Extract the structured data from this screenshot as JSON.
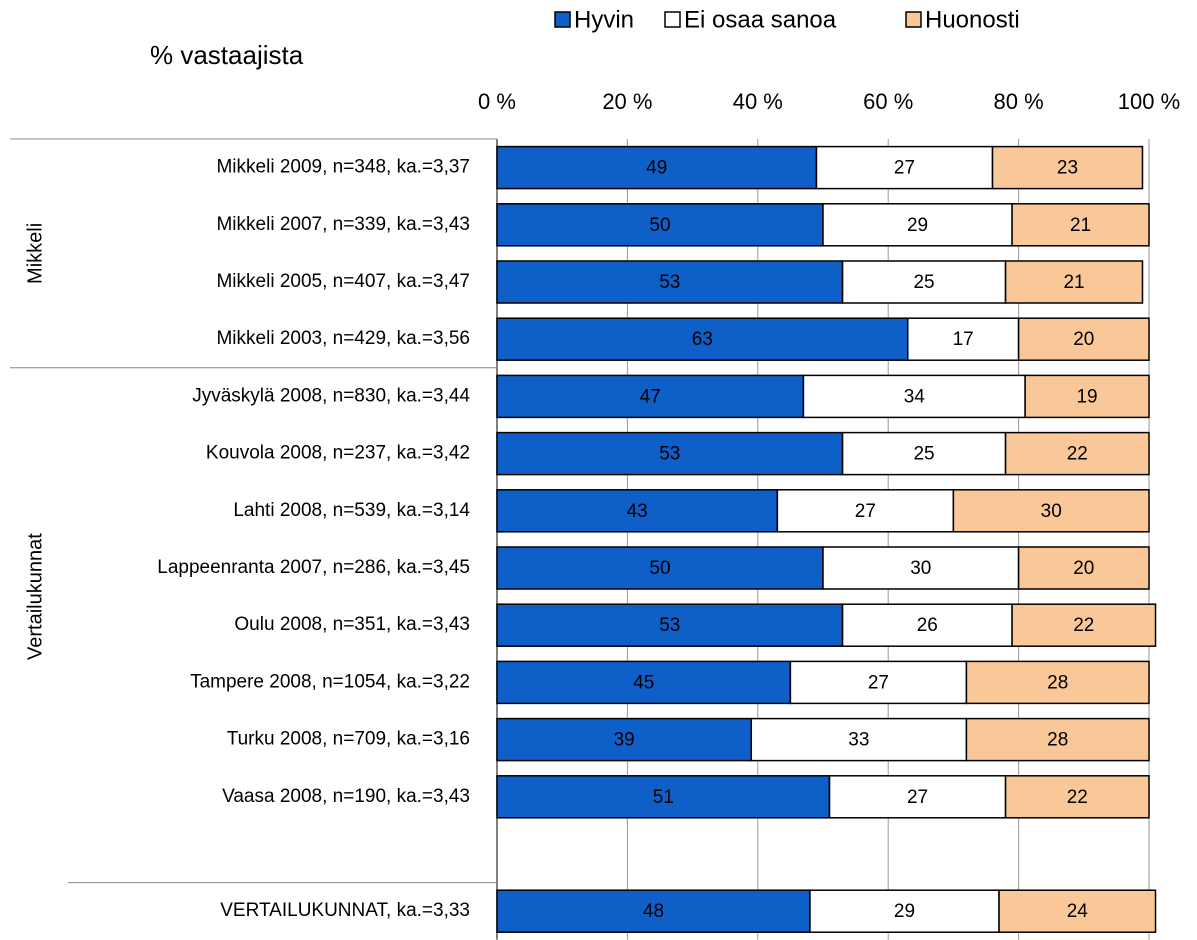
{
  "chart_data": {
    "type": "stacked-bar-horizontal",
    "axis_title": "% vastaajista",
    "categories": [
      "Mikkeli 2009, n=348, ka.=3,37",
      "Mikkeli 2007, n=339, ka.=3,43",
      "Mikkeli 2005, n=407, ka.=3,47",
      "Mikkeli 2003, n=429, ka.=3,56",
      "Jyväskylä 2008, n=830, ka.=3,44",
      "Kouvola 2008, n=237, ka.=3,42",
      "Lahti 2008, n=539, ka.=3,14",
      "Lappeenranta 2007, n=286, ka.=3,45",
      "Oulu 2008, n=351, ka.=3,43",
      "Tampere 2008, n=1054, ka.=3,22",
      "Turku 2008, n=709, ka.=3,16",
      "Vaasa 2008, n=190, ka.=3,43",
      null,
      "VERTAILUKUNNAT, ka.=3,33"
    ],
    "groups": [
      "Mikkeli",
      "Vertailukunnat"
    ],
    "series": [
      {
        "name": "Hyvin",
        "color": "#0f5fc8",
        "label_color": "#ffffff",
        "values": [
          49,
          50,
          53,
          63,
          47,
          53,
          43,
          50,
          53,
          45,
          39,
          51,
          null,
          48
        ]
      },
      {
        "name": "Ei osaa sanoa",
        "color": "#ffffff",
        "label_color": "#000000",
        "values": [
          27,
          29,
          25,
          17,
          34,
          25,
          27,
          30,
          26,
          27,
          33,
          27,
          null,
          29
        ]
      },
      {
        "name": "Huonosti",
        "color": "#fac898",
        "label_color": "#000000",
        "values": [
          23,
          21,
          21,
          20,
          19,
          22,
          30,
          20,
          22,
          28,
          28,
          22,
          null,
          24
        ]
      }
    ],
    "xlim": [
      0,
      100
    ],
    "xticks": [
      {
        "value": 0,
        "label": "0 %"
      },
      {
        "value": 20,
        "label": "20 %"
      },
      {
        "value": 40,
        "label": "40 %"
      },
      {
        "value": 60,
        "label": "60 %"
      },
      {
        "value": 80,
        "label": "80 %"
      },
      {
        "value": 100,
        "label": "100 %"
      }
    ],
    "grid": true,
    "legend": "top"
  }
}
